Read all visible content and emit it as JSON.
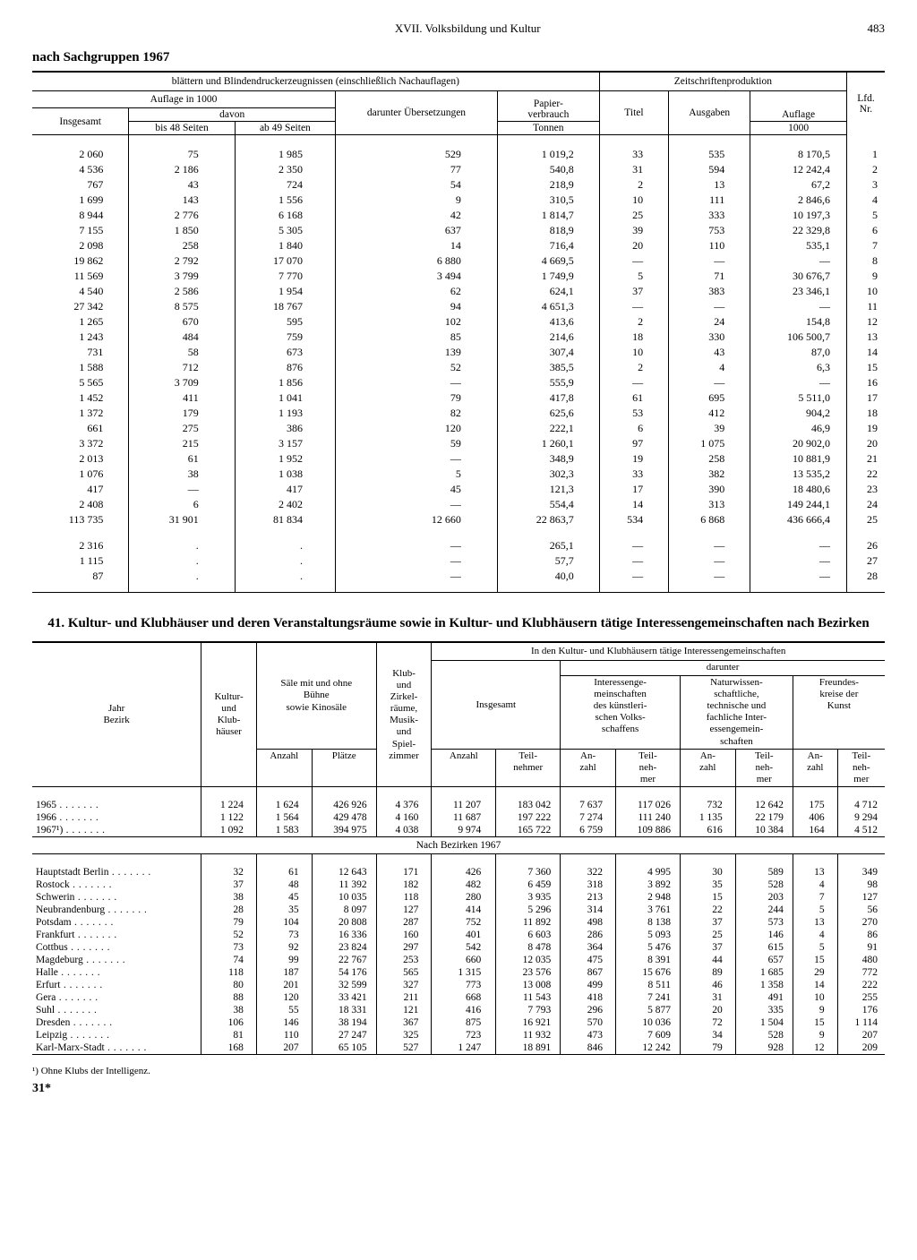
{
  "header": {
    "chapter": "XVII. Volksbildung und Kultur",
    "page": "483"
  },
  "sectionA": {
    "title": "nach Sachgruppen 1967",
    "spanTitle": "blättern und Blindendruckerzeugnissen (einschließlich Nachauflagen)",
    "zeitTitle": "Zeitschriftenproduktion",
    "cols": {
      "auflage": "Auflage in 1000",
      "insgesamt": "Insgesamt",
      "davon": "davon",
      "bis48": "bis 48 Seiten",
      "ab49": "ab 49 Seiten",
      "darunter": "darunter Übersetzungen",
      "papier": "Papier-\nverbrauch",
      "tonnen": "Tonnen",
      "titel": "Titel",
      "ausgaben": "Ausgaben",
      "auflage2": "Auflage",
      "tausend": "1000",
      "lfd": "Lfd.\nNr."
    },
    "rows": [
      [
        "2 060",
        "75",
        "1 985",
        "529",
        "1 019,2",
        "33",
        "535",
        "8 170,5",
        "1"
      ],
      [
        "4 536",
        "2 186",
        "2 350",
        "77",
        "540,8",
        "31",
        "594",
        "12 242,4",
        "2"
      ],
      [
        "767",
        "43",
        "724",
        "54",
        "218,9",
        "2",
        "13",
        "67,2",
        "3"
      ],
      [
        "1 699",
        "143",
        "1 556",
        "9",
        "310,5",
        "10",
        "111",
        "2 846,6",
        "4"
      ],
      [
        "8 944",
        "2 776",
        "6 168",
        "42",
        "1 814,7",
        "25",
        "333",
        "10 197,3",
        "5"
      ],
      [
        "7 155",
        "1 850",
        "5 305",
        "637",
        "818,9",
        "39",
        "753",
        "22 329,8",
        "6"
      ],
      [
        "2 098",
        "258",
        "1 840",
        "14",
        "716,4",
        "20",
        "110",
        "535,1",
        "7"
      ],
      [
        "19 862",
        "2 792",
        "17 070",
        "6 880",
        "4 669,5",
        "—",
        "—",
        "—",
        "8"
      ],
      [
        "11 569",
        "3 799",
        "7 770",
        "3 494",
        "1 749,9",
        "5",
        "71",
        "30 676,7",
        "9"
      ],
      [
        "4 540",
        "2 586",
        "1 954",
        "62",
        "624,1",
        "37",
        "383",
        "23 346,1",
        "10"
      ],
      [
        "27 342",
        "8 575",
        "18 767",
        "94",
        "4 651,3",
        "—",
        "—",
        "—",
        "11"
      ],
      [
        "1 265",
        "670",
        "595",
        "102",
        "413,6",
        "2",
        "24",
        "154,8",
        "12"
      ],
      [
        "1 243",
        "484",
        "759",
        "85",
        "214,6",
        "18",
        "330",
        "106 500,7",
        "13"
      ],
      [
        "731",
        "58",
        "673",
        "139",
        "307,4",
        "10",
        "43",
        "87,0",
        "14"
      ],
      [
        "1 588",
        "712",
        "876",
        "52",
        "385,5",
        "2",
        "4",
        "6,3",
        "15"
      ],
      [
        "5 565",
        "3 709",
        "1 856",
        "—",
        "555,9",
        "—",
        "—",
        "—",
        "16"
      ],
      [
        "1 452",
        "411",
        "1 041",
        "79",
        "417,8",
        "61",
        "695",
        "5 511,0",
        "17"
      ],
      [
        "1 372",
        "179",
        "1 193",
        "82",
        "625,6",
        "53",
        "412",
        "904,2",
        "18"
      ],
      [
        "661",
        "275",
        "386",
        "120",
        "222,1",
        "6",
        "39",
        "46,9",
        "19"
      ],
      [
        "3 372",
        "215",
        "3 157",
        "59",
        "1 260,1",
        "97",
        "1 075",
        "20 902,0",
        "20"
      ],
      [
        "2 013",
        "61",
        "1 952",
        "—",
        "348,9",
        "19",
        "258",
        "10 881,9",
        "21"
      ],
      [
        "1 076",
        "38",
        "1 038",
        "5",
        "302,3",
        "33",
        "382",
        "13 535,2",
        "22"
      ],
      [
        "417",
        "—",
        "417",
        "45",
        "121,3",
        "17",
        "390",
        "18 480,6",
        "23"
      ],
      [
        "2 408",
        "6",
        "2 402",
        "—",
        "554,4",
        "14",
        "313",
        "149 244,1",
        "24"
      ],
      [
        "113 735",
        "31 901",
        "81 834",
        "12 660",
        "22 863,7",
        "534",
        "6 868",
        "436 666,4",
        "25"
      ]
    ],
    "rows2": [
      [
        "2 316",
        ".",
        ".",
        "—",
        "265,1",
        "—",
        "—",
        "—",
        "26"
      ],
      [
        "1 115",
        ".",
        ".",
        "—",
        "57,7",
        "—",
        "—",
        "—",
        "27"
      ],
      [
        "87",
        ".",
        ".",
        "—",
        "40,0",
        "—",
        "—",
        "—",
        "28"
      ]
    ]
  },
  "sectionB": {
    "title": "41. Kultur- und Klubhäuser und deren Veranstaltungsräume sowie in Kultur- und Klubhäusern tätige Interessengemeinschaften nach Bezirken",
    "cols": {
      "jahr": "Jahr\nBezirk",
      "kultur": "Kultur-\nund\nKlub-\nhäuser",
      "saele": "Säle mit und ohne\nBühne\nsowie Kinosäle",
      "anzahl": "Anzahl",
      "plaetze": "Plätze",
      "klub": "Klub-\nund\nZirkel-\nräume,\nMusik-\nund\nSpiel-\nzimmer",
      "inden": "In den Kultur- und Klubhäusern tätige Interessengemeinschaften",
      "insg": "Insgesamt",
      "teil": "Teil-\nnehmer",
      "anz": "An-\nzahl",
      "teiln": "Teil-\nneh-\nmer",
      "darunter": "darunter",
      "kunst": "Interessenge-\nmeinschaften\ndes künstleri-\nschen Volks-\nschaffens",
      "natur": "Naturwissen-\nschaftliche,\ntechnische und\nfachliche Inter-\nessengemein-\nschaften",
      "freund": "Freundes-\nkreise der\nKunst"
    },
    "yearRows": [
      [
        "1965",
        "1 224",
        "1 624",
        "426 926",
        "4 376",
        "11 207",
        "183 042",
        "7 637",
        "117 026",
        "732",
        "12 642",
        "175",
        "4 712"
      ],
      [
        "1966",
        "1 122",
        "1 564",
        "429 478",
        "4 160",
        "11 687",
        "197 222",
        "7 274",
        "111 240",
        "1 135",
        "22 179",
        "406",
        "9 294"
      ],
      [
        "1967¹)",
        "1 092",
        "1 583",
        "394 975",
        "4 038",
        "9 974",
        "165 722",
        "6 759",
        "109 886",
        "616",
        "10 384",
        "164",
        "4 512"
      ]
    ],
    "subhead": "Nach Bezirken 1967",
    "bezirkRows": [
      [
        "Hauptstadt Berlin",
        "32",
        "61",
        "12 643",
        "171",
        "426",
        "7 360",
        "322",
        "4 995",
        "30",
        "589",
        "13",
        "349"
      ],
      [
        "Rostock",
        "37",
        "48",
        "11 392",
        "182",
        "482",
        "6 459",
        "318",
        "3 892",
        "35",
        "528",
        "4",
        "98"
      ],
      [
        "Schwerin",
        "38",
        "45",
        "10 035",
        "118",
        "280",
        "3 935",
        "213",
        "2 948",
        "15",
        "203",
        "7",
        "127"
      ],
      [
        "Neubrandenburg",
        "28",
        "35",
        "8 097",
        "127",
        "414",
        "5 296",
        "314",
        "3 761",
        "22",
        "244",
        "5",
        "56"
      ],
      [
        "Potsdam",
        "79",
        "104",
        "20 808",
        "287",
        "752",
        "11 892",
        "498",
        "8 138",
        "37",
        "573",
        "13",
        "270"
      ],
      [
        "Frankfurt",
        "52",
        "73",
        "16 336",
        "160",
        "401",
        "6 603",
        "286",
        "5 093",
        "25",
        "146",
        "4",
        "86"
      ],
      [
        "Cottbus",
        "73",
        "92",
        "23 824",
        "297",
        "542",
        "8 478",
        "364",
        "5 476",
        "37",
        "615",
        "5",
        "91"
      ],
      [
        "Magdeburg",
        "74",
        "99",
        "22 767",
        "253",
        "660",
        "12 035",
        "475",
        "8 391",
        "44",
        "657",
        "15",
        "480"
      ],
      [
        "Halle",
        "118",
        "187",
        "54 176",
        "565",
        "1 315",
        "23 576",
        "867",
        "15 676",
        "89",
        "1 685",
        "29",
        "772"
      ],
      [
        "Erfurt",
        "80",
        "201",
        "32 599",
        "327",
        "773",
        "13 008",
        "499",
        "8 511",
        "46",
        "1 358",
        "14",
        "222"
      ],
      [
        "Gera",
        "88",
        "120",
        "33 421",
        "211",
        "668",
        "11 543",
        "418",
        "7 241",
        "31",
        "491",
        "10",
        "255"
      ],
      [
        "Suhl",
        "38",
        "55",
        "18 331",
        "121",
        "416",
        "7 793",
        "296",
        "5 877",
        "20",
        "335",
        "9",
        "176"
      ],
      [
        "Dresden",
        "106",
        "146",
        "38 194",
        "367",
        "875",
        "16 921",
        "570",
        "10 036",
        "72",
        "1 504",
        "15",
        "1 114"
      ],
      [
        "Leipzig",
        "81",
        "110",
        "27 247",
        "325",
        "723",
        "11 932",
        "473",
        "7 609",
        "34",
        "528",
        "9",
        "207"
      ],
      [
        "Karl-Marx-Stadt",
        "168",
        "207",
        "65 105",
        "527",
        "1 247",
        "18 891",
        "846",
        "12 242",
        "79",
        "928",
        "12",
        "209"
      ]
    ],
    "footnote": "¹) Ohne Klubs der Intelligenz.",
    "sig": "31*"
  }
}
